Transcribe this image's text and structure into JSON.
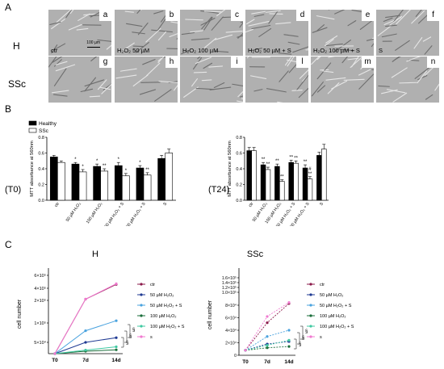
{
  "panel_a": {
    "letter": "A",
    "row_h": "H",
    "row_ssc": "SSc",
    "scale_bar": "100 µm",
    "top_row": [
      {
        "id": "a",
        "caption": "ctr"
      },
      {
        "id": "b",
        "caption": "H₂O₂ 50 µM"
      },
      {
        "id": "c",
        "caption": "H₂O₂ 100 µM"
      },
      {
        "id": "d",
        "caption": "H₂O₂ 50 µM + S"
      },
      {
        "id": "e",
        "caption": "H₂O₂ 100 µM + S"
      },
      {
        "id": "f",
        "caption": "S"
      }
    ],
    "bottom_row": [
      {
        "id": "g",
        "caption": ""
      },
      {
        "id": "h",
        "caption": ""
      },
      {
        "id": "i",
        "caption": ""
      },
      {
        "id": "l",
        "caption": ""
      },
      {
        "id": "m",
        "caption": ""
      },
      {
        "id": "n",
        "caption": ""
      }
    ]
  },
  "panel_b": {
    "letter": "B",
    "legend": [
      "Healthy",
      "SSc"
    ],
    "colors": {
      "healthy": "#000000",
      "ssc": "#ffffff"
    },
    "charts": [
      {
        "tag": "(T0)",
        "ylabel": "MTT absorbance at 560nm",
        "yticks": [
          "0.0",
          "0.2",
          "0.4",
          "0.6",
          "0.8"
        ],
        "ylim": [
          0,
          0.8
        ],
        "categories": [
          "ctr",
          "50 µM H₂O₂",
          "100 µM H₂O₂",
          "50 µM H₂O₂ + S",
          "100 µM H₂O₂ + S",
          "S"
        ],
        "healthy": [
          0.55,
          0.46,
          0.43,
          0.44,
          0.41,
          0.53
        ],
        "ssc": [
          0.48,
          0.36,
          0.37,
          0.31,
          0.32,
          0.6
        ],
        "healthy_err": [
          0.02,
          0.02,
          0.03,
          0.04,
          0.03,
          0.04
        ],
        "ssc_err": [
          0.02,
          0.03,
          0.03,
          0.03,
          0.03,
          0.05
        ],
        "healthy_marks": [
          "",
          "*",
          "*",
          "*",
          "*",
          ""
        ],
        "ssc_marks": [
          "",
          "*",
          "**",
          "*",
          "**",
          ""
        ]
      },
      {
        "tag": "(T24)",
        "ylabel": "MTT absorbance at 560nm",
        "yticks": [
          "0.0",
          "0.2",
          "0.4",
          "0.6",
          "0.8"
        ],
        "ylim": [
          0,
          0.8
        ],
        "categories": [
          "ctr",
          "50 µM H₂O₂",
          "100 µM H₂O₂",
          "50 µM H₂O₂ + S",
          "100 µM H₂O₂ + S",
          "S"
        ],
        "healthy": [
          0.63,
          0.45,
          0.43,
          0.48,
          0.41,
          0.57
        ],
        "ssc": [
          0.63,
          0.39,
          0.24,
          0.47,
          0.27,
          0.65
        ],
        "healthy_err": [
          0.04,
          0.03,
          0.03,
          0.03,
          0.04,
          0.04
        ],
        "ssc_err": [
          0.04,
          0.03,
          0.02,
          0.03,
          0.03,
          0.06
        ],
        "healthy_marks": [
          "",
          "**",
          "**",
          "**",
          "**",
          ""
        ],
        "ssc_marks": [
          "",
          "**",
          "**",
          "**",
          "#\n**",
          ""
        ]
      }
    ]
  },
  "panel_c": {
    "letter": "C",
    "series_names": [
      "ctr",
      "50 µM H₂O₂",
      "50 µM H₂O₂ + S",
      "100 µM H₂O₂",
      "100 µM H₂O₂ + S",
      "s"
    ],
    "series_colors": [
      "#8b1a4a",
      "#1f3a93",
      "#4aa3df",
      "#1a6e3a",
      "#40c9a2",
      "#f07ad0"
    ],
    "x": [
      "T0",
      "7d",
      "14d"
    ],
    "ylabel": "cell number",
    "charts": [
      {
        "title": "H",
        "yticks": [
          "5×10⁴",
          "1×10⁵",
          "2×10⁵",
          "4×10⁵",
          "6×10⁵"
        ],
        "series": [
          {
            "name": "ctr",
            "values": [
              12000,
              220000,
              460000
            ]
          },
          {
            "name": "50 µM H₂O₂",
            "values": [
              12000,
              50000,
              62000
            ]
          },
          {
            "name": "50 µM H₂O₂ + S",
            "values": [
              12000,
              80000,
              110000
            ]
          },
          {
            "name": "100 µM H₂O₂",
            "values": [
              12000,
              20000,
              25000
            ]
          },
          {
            "name": "100 µM H₂O₂ + S",
            "values": [
              12000,
              24000,
              35000
            ]
          },
          {
            "name": "s",
            "values": [
              12000,
              220000,
              470000
            ]
          }
        ],
        "annotations": [
          "§",
          "§",
          "§"
        ]
      },
      {
        "title": "SSc",
        "yticks": [
          "0",
          "2×10⁴",
          "4×10⁴",
          "6×10⁴",
          "8×10⁴",
          "1.0×10⁵",
          "1.2×10⁵",
          "1.4×10⁵",
          "1.6×10⁵"
        ],
        "series": [
          {
            "name": "ctr",
            "values": [
              8000,
              52000,
              85000
            ]
          },
          {
            "name": "50 µM H₂O₂",
            "values": [
              8000,
              18000,
              22000
            ]
          },
          {
            "name": "50 µM H₂O₂ + S",
            "values": [
              8000,
              30000,
              40000
            ]
          },
          {
            "name": "100 µM H₂O₂",
            "values": [
              8000,
              12000,
              14000
            ]
          },
          {
            "name": "100 µM H₂O₂ + S",
            "values": [
              8000,
              16000,
              24000
            ]
          },
          {
            "name": "s",
            "values": [
              8000,
              62000,
              88000
            ]
          }
        ],
        "annotations": [
          "§",
          "§",
          "§"
        ]
      }
    ]
  },
  "chart_data": [
    {
      "type": "bar",
      "title": "(T0)",
      "ylabel": "MTT absorbance at 560nm",
      "ylim": [
        0,
        0.8
      ],
      "categories": [
        "ctr",
        "50 µM H₂O₂",
        "100 µM H₂O₂",
        "50 µM H₂O₂ + S",
        "100 µM H₂O₂ + S",
        "S"
      ],
      "series": [
        {
          "name": "Healthy",
          "values": [
            0.55,
            0.46,
            0.43,
            0.44,
            0.41,
            0.53
          ]
        },
        {
          "name": "SSc",
          "values": [
            0.48,
            0.36,
            0.37,
            0.31,
            0.32,
            0.6
          ]
        }
      ],
      "legend": "top-left"
    },
    {
      "type": "bar",
      "title": "(T24)",
      "ylabel": "MTT absorbance at 560nm",
      "ylim": [
        0,
        0.8
      ],
      "categories": [
        "ctr",
        "50 µM H₂O₂",
        "100 µM H₂O₂",
        "50 µM H₂O₂ + S",
        "100 µM H₂O₂ + S",
        "S"
      ],
      "series": [
        {
          "name": "Healthy",
          "values": [
            0.63,
            0.45,
            0.43,
            0.48,
            0.41,
            0.57
          ]
        },
        {
          "name": "SSc",
          "values": [
            0.63,
            0.39,
            0.24,
            0.47,
            0.27,
            0.65
          ]
        }
      ]
    },
    {
      "type": "line",
      "title": "H",
      "ylabel": "cell number",
      "x": [
        "T0",
        "7d",
        "14d"
      ],
      "series": [
        {
          "name": "ctr",
          "values": [
            12000,
            220000,
            460000
          ]
        },
        {
          "name": "50 µM H₂O₂",
          "values": [
            12000,
            50000,
            62000
          ]
        },
        {
          "name": "50 µM H₂O₂ + S",
          "values": [
            12000,
            80000,
            110000
          ]
        },
        {
          "name": "100 µM H₂O₂",
          "values": [
            12000,
            20000,
            25000
          ]
        },
        {
          "name": "100 µM H₂O₂ + S",
          "values": [
            12000,
            24000,
            35000
          ]
        },
        {
          "name": "s",
          "values": [
            12000,
            220000,
            470000
          ]
        }
      ],
      "legend": "right"
    },
    {
      "type": "line",
      "title": "SSc",
      "ylabel": "cell number",
      "x": [
        "T0",
        "7d",
        "14d"
      ],
      "series": [
        {
          "name": "ctr",
          "values": [
            8000,
            52000,
            85000
          ]
        },
        {
          "name": "50 µM H₂O₂",
          "values": [
            8000,
            18000,
            22000
          ]
        },
        {
          "name": "50 µM H₂O₂ + S",
          "values": [
            8000,
            30000,
            40000
          ]
        },
        {
          "name": "100 µM H₂O₂",
          "values": [
            8000,
            12000,
            14000
          ]
        },
        {
          "name": "100 µM H₂O₂ + S",
          "values": [
            8000,
            16000,
            24000
          ]
        },
        {
          "name": "s",
          "values": [
            8000,
            62000,
            88000
          ]
        }
      ],
      "legend": "right"
    }
  ]
}
